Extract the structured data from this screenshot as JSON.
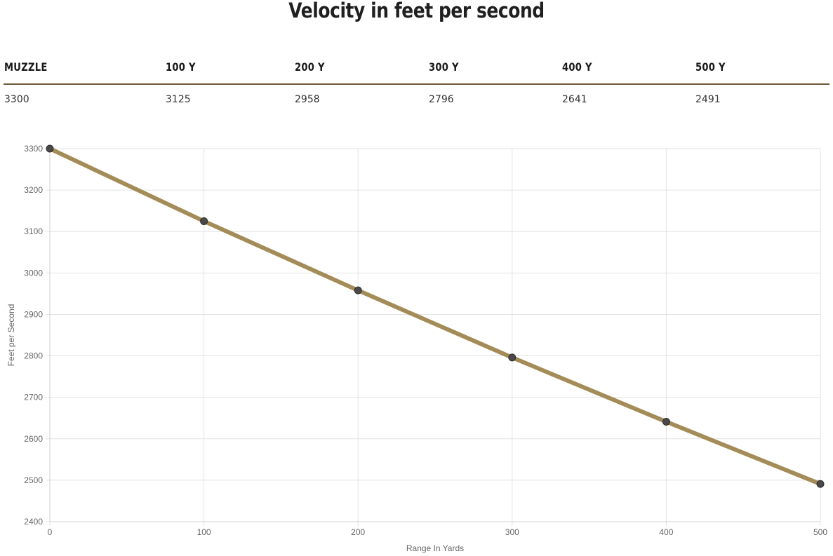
{
  "title": "Velocity in feet per second",
  "table": {
    "headers": [
      "MUZZLE",
      "100 Y",
      "200 Y",
      "300 Y",
      "400 Y",
      "500 Y"
    ],
    "values": [
      "3300",
      "3125",
      "2958",
      "2796",
      "2641",
      "2491"
    ]
  },
  "colors": {
    "line": "#a38c57",
    "point": "#4a4848",
    "grid": "#e3e3e3",
    "rule": "#6e5a3a"
  },
  "chart_data": {
    "type": "line",
    "x": [
      0,
      100,
      200,
      300,
      400,
      500
    ],
    "series": [
      {
        "values": [
          3300,
          3125,
          2958,
          2796,
          2641,
          2491
        ]
      }
    ],
    "xlabel": "Range In Yards",
    "ylabel": "Feet per Second",
    "xlim": [
      0,
      500
    ],
    "ylim": [
      2400,
      3300
    ],
    "xticks": [
      "0",
      "100",
      "200",
      "300",
      "400",
      "500"
    ],
    "yticks": [
      "2400",
      "2500",
      "2600",
      "2700",
      "2800",
      "2900",
      "3000",
      "3100",
      "3200",
      "3300"
    ],
    "grid": true,
    "legend": "none"
  }
}
